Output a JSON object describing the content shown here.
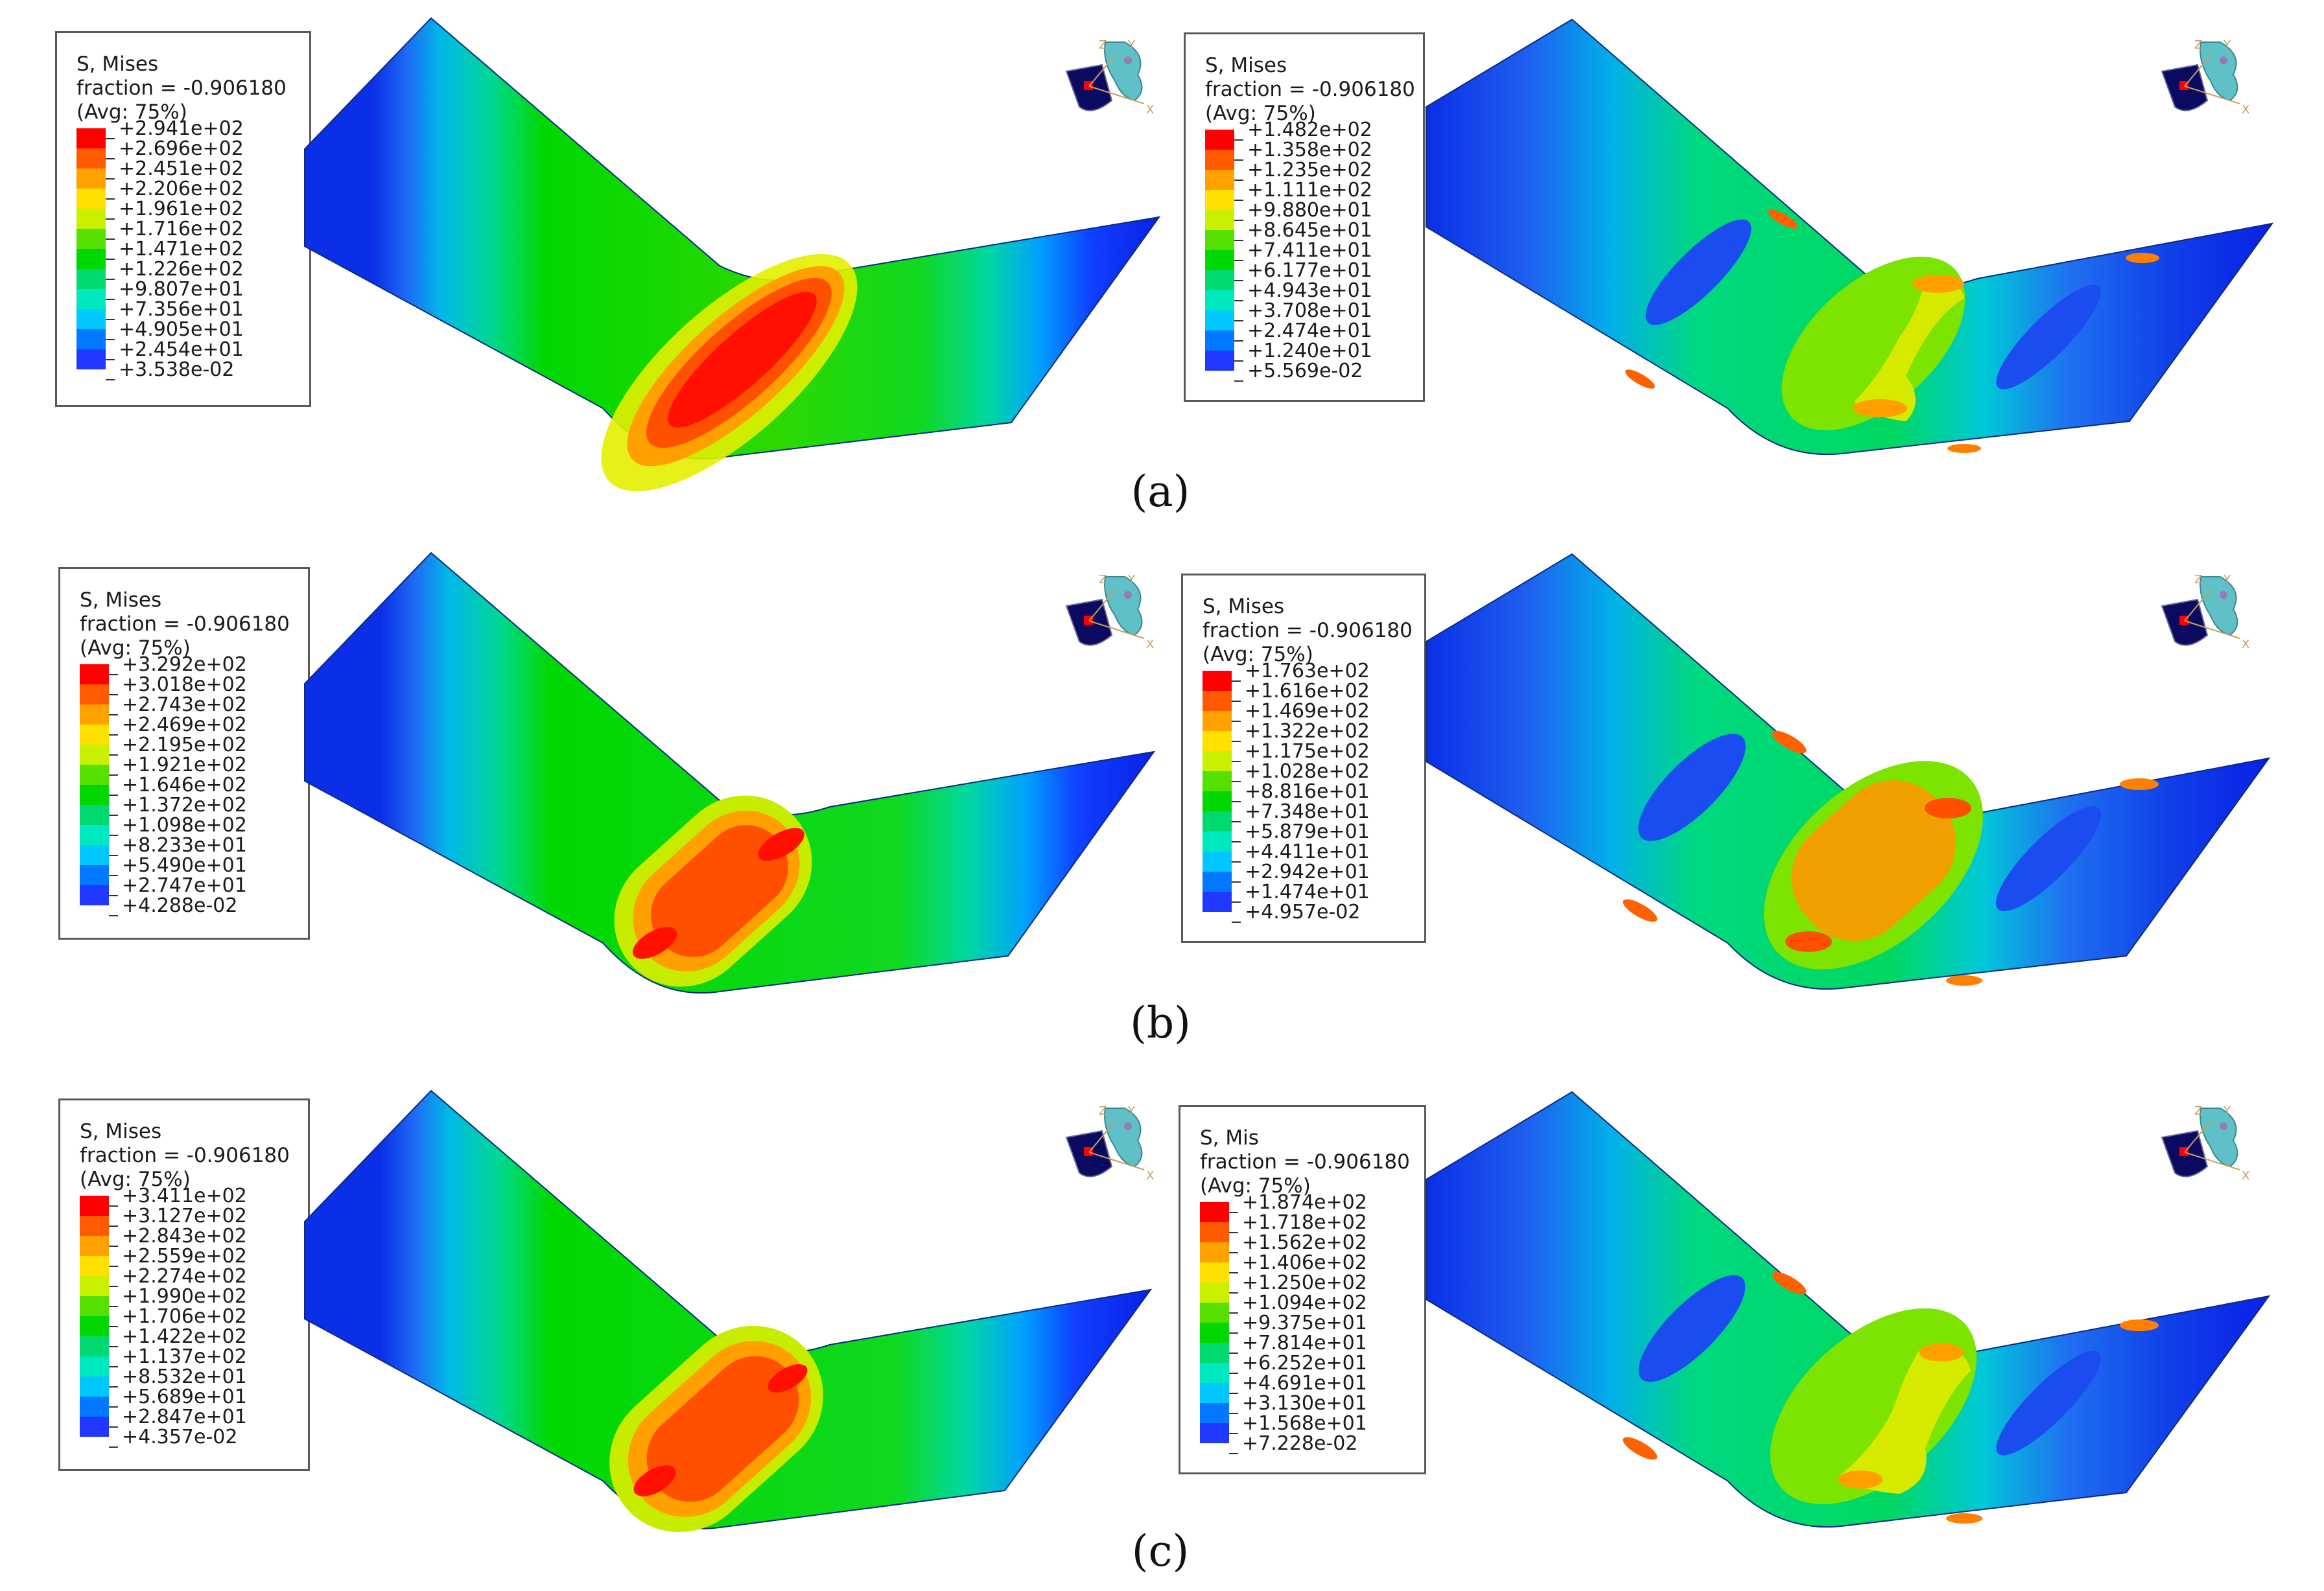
{
  "panels": [
    {
      "id": "a",
      "caption": "(a)",
      "left_legend": {
        "title": "S, Mises",
        "fraction": "fraction = -0.906180",
        "avg": "(Avg: 75%)",
        "values": [
          "+2.941e+02",
          "+2.696e+02",
          "+2.451e+02",
          "+2.206e+02",
          "+1.961e+02",
          "+1.716e+02",
          "+1.471e+02",
          "+1.226e+02",
          "+9.807e+01",
          "+7.356e+01",
          "+4.905e+01",
          "+2.454e+01",
          "+3.538e-02"
        ]
      },
      "right_legend": {
        "title": "S, Mises",
        "fraction": "fraction = -0.906180",
        "avg": "(Avg: 75%)",
        "values": [
          "+1.482e+02",
          "+1.358e+02",
          "+1.235e+02",
          "+1.111e+02",
          "+9.880e+01",
          "+8.645e+01",
          "+7.411e+01",
          "+6.177e+01",
          "+4.943e+01",
          "+3.708e+01",
          "+2.474e+01",
          "+1.240e+01",
          "+5.569e-02"
        ]
      }
    },
    {
      "id": "b",
      "caption": "(b)",
      "left_legend": {
        "title": "S, Mises",
        "fraction": "fraction = -0.906180",
        "avg": "(Avg: 75%)",
        "values": [
          "+3.292e+02",
          "+3.018e+02",
          "+2.743e+02",
          "+2.469e+02",
          "+2.195e+02",
          "+1.921e+02",
          "+1.646e+02",
          "+1.372e+02",
          "+1.098e+02",
          "+8.233e+01",
          "+5.490e+01",
          "+2.747e+01",
          "+4.288e-02"
        ]
      },
      "right_legend": {
        "title": "S, Mises",
        "fraction": "fraction = -0.906180",
        "avg": "(Avg: 75%)",
        "values": [
          "+1.763e+02",
          "+1.616e+02",
          "+1.469e+02",
          "+1.322e+02",
          "+1.175e+02",
          "+1.028e+02",
          "+8.816e+01",
          "+7.348e+01",
          "+5.879e+01",
          "+4.411e+01",
          "+2.942e+01",
          "+1.474e+01",
          "+4.957e-02"
        ]
      }
    },
    {
      "id": "c",
      "caption": "(c)",
      "left_legend": {
        "title": "S, Mises",
        "fraction": "fraction = -0.906180",
        "avg": "(Avg: 75%)",
        "values": [
          "+3.411e+02",
          "+3.127e+02",
          "+2.843e+02",
          "+2.559e+02",
          "+2.274e+02",
          "+1.990e+02",
          "+1.706e+02",
          "+1.422e+02",
          "+1.137e+02",
          "+8.532e+01",
          "+5.689e+01",
          "+2.847e+01",
          "+4.357e-02"
        ]
      },
      "right_legend": {
        "title": "S, Mis",
        "fraction": "fraction = -0.906180",
        "avg": "(Avg: 75%)",
        "values": [
          "+1.874e+02",
          "+1.718e+02",
          "+1.562e+02",
          "+1.406e+02",
          "+1.250e+02",
          "+1.094e+02",
          "+9.375e+01",
          "+7.814e+01",
          "+6.252e+01",
          "+4.691e+01",
          "+3.130e+01",
          "+1.568e+01",
          "+7.228e-02"
        ]
      }
    }
  ],
  "triad_labels": {
    "z": "Z",
    "y": "Y",
    "x": "X"
  },
  "contour_colors": [
    "#ff0000",
    "#ff5a00",
    "#ffa200",
    "#ffe000",
    "#c8f000",
    "#56e000",
    "#00d800",
    "#00d870",
    "#00e8c0",
    "#00c8ff",
    "#0078ff",
    "#2038ff",
    "#0000e6"
  ]
}
